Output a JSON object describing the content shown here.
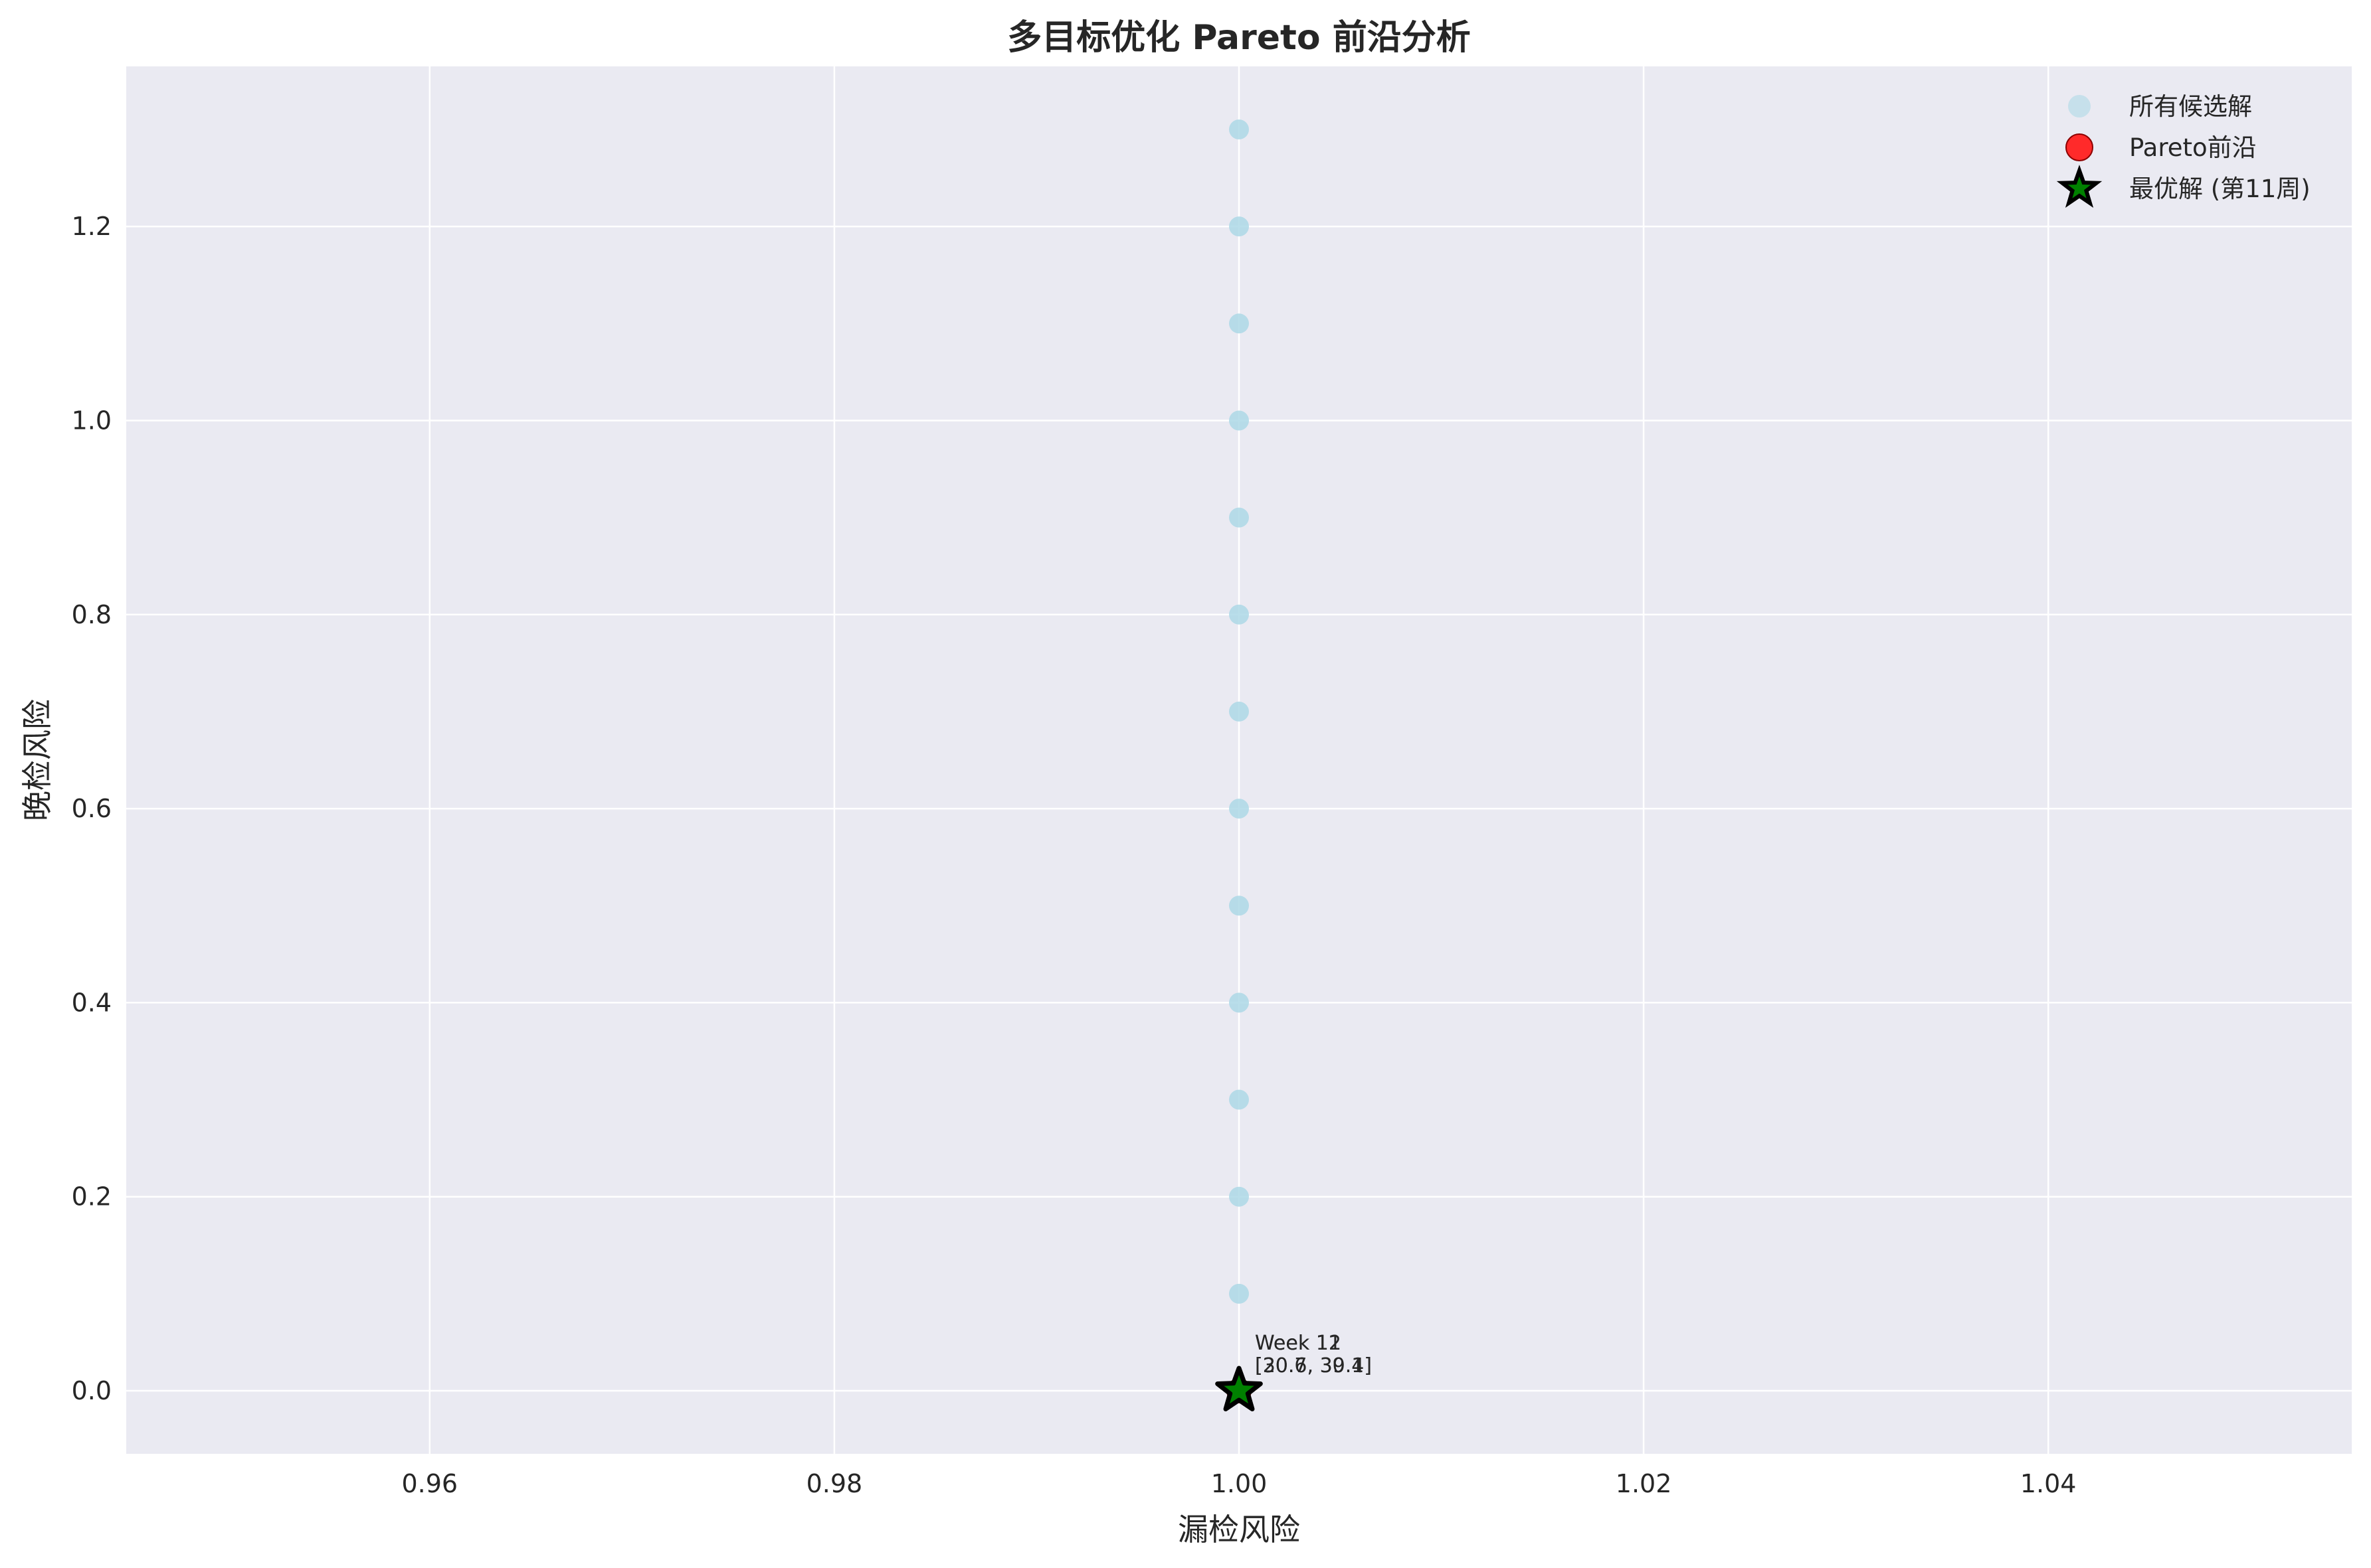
{
  "chart_data": {
    "type": "scatter",
    "title": "多目标优化 Pareto 前沿分析",
    "xlabel": "漏检风险",
    "ylabel": "晚检风险",
    "xlim": [
      0.945,
      1.055
    ],
    "ylim": [
      -0.065,
      1.365
    ],
    "xticks": [
      0.96,
      0.98,
      1.0,
      1.02,
      1.04
    ],
    "xtick_labels": [
      "0.96",
      "0.98",
      "1.00",
      "1.02",
      "1.04"
    ],
    "yticks": [
      0.0,
      0.2,
      0.4,
      0.6,
      0.8,
      1.0,
      1.2
    ],
    "ytick_labels": [
      "0.0",
      "0.2",
      "0.4",
      "0.6",
      "0.8",
      "1.0",
      "1.2"
    ],
    "grid": true,
    "legend_position": "top-right",
    "series": [
      {
        "name": "所有候选解",
        "marker": "circle",
        "color": "#add8e6",
        "points": [
          {
            "x": 1.0,
            "y": 1.3
          },
          {
            "x": 1.0,
            "y": 1.2
          },
          {
            "x": 1.0,
            "y": 1.1
          },
          {
            "x": 1.0,
            "y": 1.0
          },
          {
            "x": 1.0,
            "y": 0.9
          },
          {
            "x": 1.0,
            "y": 0.8
          },
          {
            "x": 1.0,
            "y": 0.7
          },
          {
            "x": 1.0,
            "y": 0.6
          },
          {
            "x": 1.0,
            "y": 0.5
          },
          {
            "x": 1.0,
            "y": 0.4
          },
          {
            "x": 1.0,
            "y": 0.3
          },
          {
            "x": 1.0,
            "y": 0.2
          },
          {
            "x": 1.0,
            "y": 0.1
          },
          {
            "x": 1.0,
            "y": 0.0
          }
        ]
      },
      {
        "name": "Pareto前沿",
        "marker": "circle",
        "color": "#ff2a2a",
        "points": [
          {
            "x": 1.0,
            "y": 0.0
          }
        ]
      },
      {
        "name": "最优解 (第11周)",
        "marker": "star",
        "color": "#008000",
        "points": [
          {
            "x": 1.0,
            "y": 0.0
          }
        ]
      }
    ],
    "annotations": [
      {
        "x": 1.0,
        "y": 0.0,
        "line1": "Week 11",
        "line2": "[30.7, 39.4]"
      },
      {
        "x": 1.0,
        "y": 0.0,
        "line1": "Week 12",
        "line2": "[20.6, 30.1]"
      }
    ]
  },
  "colors": {
    "plot_background": "#eaeaf2",
    "grid": "#ffffff",
    "text": "#262626"
  }
}
